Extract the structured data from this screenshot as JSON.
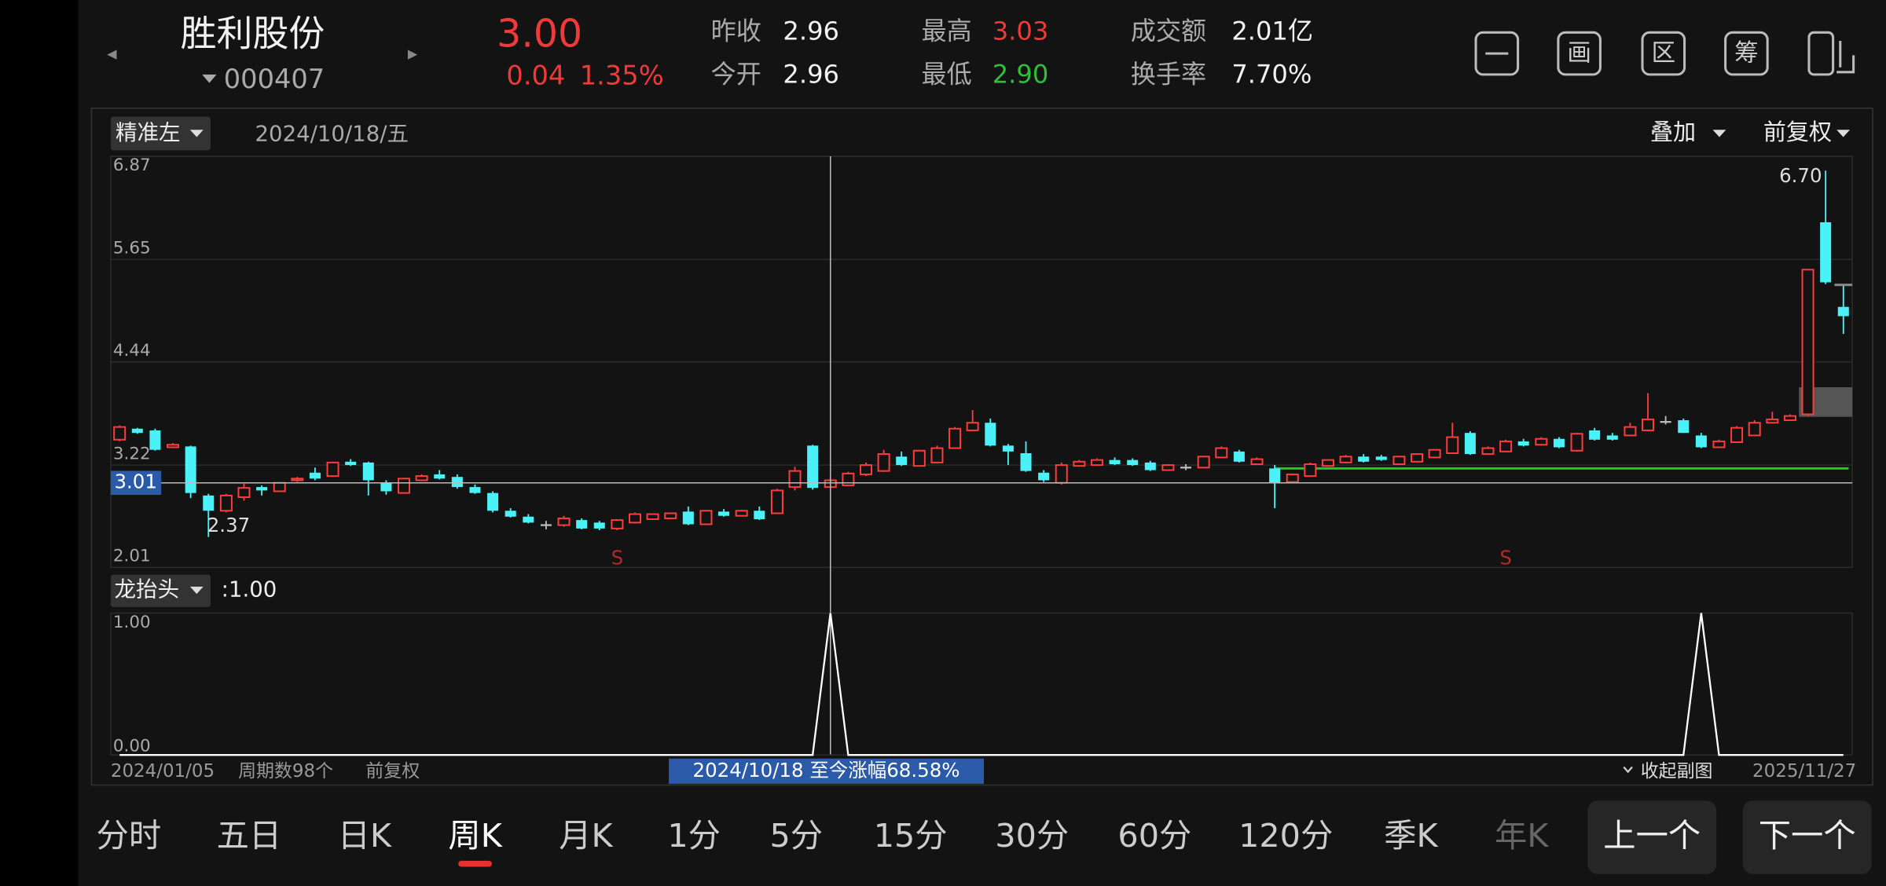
{
  "quote": {
    "name": "胜利股份",
    "code": "000407",
    "price": "3.00",
    "change": "0.04",
    "change_pct": "1.35%",
    "stats": [
      {
        "label": "昨收",
        "value": "2.96"
      },
      {
        "label": "今开",
        "value": "2.96"
      },
      {
        "label": "最高",
        "value": "3.03",
        "color": "#f03a3a"
      },
      {
        "label": "最低",
        "value": "2.90",
        "color": "#2fbf3a"
      },
      {
        "label": "成交额",
        "value": "2.01亿"
      },
      {
        "label": "换手率",
        "value": "7.70%"
      }
    ]
  },
  "tools": [
    "画",
    "区",
    "筹"
  ],
  "toolbar": {
    "mode": "精准左",
    "date": "2024/10/18/五",
    "overlay": "叠加",
    "adjust": "前复权"
  },
  "chart_data": [
    {
      "type": "candlestick",
      "ylim": [
        2.01,
        6.87
      ],
      "yticks": [
        6.87,
        5.65,
        4.44,
        3.22,
        2.01
      ],
      "grid": true,
      "up_color": "#ff3b3b",
      "down_color": "#4af2f7",
      "flat_color": "#bbbbbb",
      "candles": [
        [
          3.52,
          3.69,
          3.5,
          3.67
        ],
        [
          3.65,
          3.66,
          3.59,
          3.6
        ],
        [
          3.63,
          3.65,
          3.39,
          3.4
        ],
        [
          3.43,
          3.48,
          3.42,
          3.46
        ],
        [
          3.44,
          3.45,
          2.83,
          2.89
        ],
        [
          2.86,
          2.88,
          2.37,
          2.68
        ],
        [
          2.68,
          2.88,
          2.66,
          2.86
        ],
        [
          2.84,
          3.0,
          2.8,
          2.95
        ],
        [
          2.96,
          2.98,
          2.86,
          2.92
        ],
        [
          2.91,
          3.02,
          2.9,
          3.01
        ],
        [
          3.04,
          3.08,
          3.02,
          3.06
        ],
        [
          3.13,
          3.19,
          3.04,
          3.06
        ],
        [
          3.09,
          3.26,
          3.08,
          3.25
        ],
        [
          3.26,
          3.29,
          3.21,
          3.22
        ],
        [
          3.25,
          3.26,
          2.86,
          3.04
        ],
        [
          3.01,
          3.04,
          2.87,
          2.91
        ],
        [
          2.89,
          3.07,
          2.88,
          3.06
        ],
        [
          3.04,
          3.11,
          3.03,
          3.09
        ],
        [
          3.11,
          3.16,
          3.05,
          3.06
        ],
        [
          3.08,
          3.11,
          2.94,
          2.96
        ],
        [
          2.96,
          2.99,
          2.88,
          2.89
        ],
        [
          2.89,
          2.91,
          2.66,
          2.68
        ],
        [
          2.68,
          2.71,
          2.6,
          2.61
        ],
        [
          2.61,
          2.64,
          2.53,
          2.54
        ],
        [
          2.51,
          2.56,
          2.46,
          2.51
        ],
        [
          2.51,
          2.62,
          2.49,
          2.59
        ],
        [
          2.57,
          2.59,
          2.46,
          2.47
        ],
        [
          2.54,
          2.56,
          2.45,
          2.47
        ],
        [
          2.47,
          2.58,
          2.45,
          2.57
        ],
        [
          2.54,
          2.66,
          2.53,
          2.64
        ],
        [
          2.58,
          2.65,
          2.57,
          2.64
        ],
        [
          2.59,
          2.66,
          2.58,
          2.65
        ],
        [
          2.67,
          2.73,
          2.51,
          2.52
        ],
        [
          2.52,
          2.69,
          2.51,
          2.68
        ],
        [
          2.67,
          2.7,
          2.61,
          2.62
        ],
        [
          2.62,
          2.69,
          2.61,
          2.68
        ],
        [
          2.68,
          2.73,
          2.57,
          2.58
        ],
        [
          2.65,
          2.94,
          2.64,
          2.92
        ],
        [
          2.96,
          3.2,
          2.92,
          3.15
        ],
        [
          3.45,
          3.46,
          2.93,
          2.95
        ],
        [
          2.96,
          3.06,
          2.95,
          3.04
        ],
        [
          2.98,
          3.14,
          2.97,
          3.12
        ],
        [
          3.11,
          3.25,
          3.09,
          3.22
        ],
        [
          3.15,
          3.4,
          3.14,
          3.35
        ],
        [
          3.32,
          3.38,
          3.21,
          3.22
        ],
        [
          3.21,
          3.4,
          3.2,
          3.39
        ],
        [
          3.25,
          3.45,
          3.24,
          3.42
        ],
        [
          3.42,
          3.67,
          3.41,
          3.65
        ],
        [
          3.63,
          3.87,
          3.62,
          3.72
        ],
        [
          3.72,
          3.77,
          3.44,
          3.45
        ],
        [
          3.45,
          3.47,
          3.22,
          3.38
        ],
        [
          3.36,
          3.5,
          3.14,
          3.15
        ],
        [
          3.13,
          3.16,
          3.02,
          3.04
        ],
        [
          3.01,
          3.25,
          2.99,
          3.22
        ],
        [
          3.21,
          3.28,
          3.2,
          3.26
        ],
        [
          3.22,
          3.3,
          3.21,
          3.28
        ],
        [
          3.28,
          3.31,
          3.22,
          3.23
        ],
        [
          3.28,
          3.3,
          3.21,
          3.22
        ],
        [
          3.25,
          3.27,
          3.15,
          3.16
        ],
        [
          3.16,
          3.23,
          3.15,
          3.22
        ],
        [
          3.19,
          3.23,
          3.16,
          3.19
        ],
        [
          3.19,
          3.33,
          3.18,
          3.32
        ],
        [
          3.31,
          3.44,
          3.3,
          3.42
        ],
        [
          3.38,
          3.4,
          3.25,
          3.26
        ],
        [
          3.23,
          3.31,
          3.22,
          3.29
        ],
        [
          3.18,
          3.22,
          2.71,
          3.01
        ],
        [
          3.02,
          3.12,
          3.01,
          3.11
        ],
        [
          3.09,
          3.25,
          3.08,
          3.23
        ],
        [
          3.21,
          3.29,
          3.2,
          3.28
        ],
        [
          3.25,
          3.34,
          3.24,
          3.32
        ],
        [
          3.32,
          3.35,
          3.25,
          3.26
        ],
        [
          3.32,
          3.34,
          3.27,
          3.28
        ],
        [
          3.23,
          3.33,
          3.22,
          3.32
        ],
        [
          3.26,
          3.36,
          3.25,
          3.35
        ],
        [
          3.31,
          3.41,
          3.3,
          3.4
        ],
        [
          3.36,
          3.72,
          3.35,
          3.55
        ],
        [
          3.6,
          3.62,
          3.34,
          3.35
        ],
        [
          3.35,
          3.44,
          3.34,
          3.42
        ],
        [
          3.38,
          3.52,
          3.37,
          3.5
        ],
        [
          3.5,
          3.53,
          3.44,
          3.45
        ],
        [
          3.46,
          3.55,
          3.45,
          3.53
        ],
        [
          3.53,
          3.55,
          3.42,
          3.43
        ],
        [
          3.39,
          3.6,
          3.38,
          3.59
        ],
        [
          3.63,
          3.66,
          3.51,
          3.52
        ],
        [
          3.57,
          3.6,
          3.51,
          3.52
        ],
        [
          3.57,
          3.72,
          3.56,
          3.67
        ],
        [
          3.63,
          4.07,
          3.62,
          3.76
        ],
        [
          3.73,
          3.8,
          3.7,
          3.73
        ],
        [
          3.75,
          3.77,
          3.6,
          3.6
        ],
        [
          3.57,
          3.6,
          3.42,
          3.43
        ],
        [
          3.43,
          3.52,
          3.42,
          3.5
        ],
        [
          3.49,
          3.68,
          3.48,
          3.66
        ],
        [
          3.57,
          3.75,
          3.56,
          3.72
        ],
        [
          3.72,
          3.85,
          3.71,
          3.76
        ],
        [
          3.75,
          3.82,
          3.74,
          3.8
        ],
        [
          3.82,
          5.53,
          3.8,
          5.53
        ],
        [
          6.09,
          6.7,
          5.36,
          5.38
        ],
        [
          5.09,
          5.34,
          4.77,
          4.98
        ]
      ],
      "overlays": {
        "support": {
          "value": 3.18,
          "start": 65,
          "color": "#22c822"
        },
        "zone": {
          "low": 3.79,
          "high": 4.14,
          "start": 95
        },
        "level": {
          "value": 5.35,
          "start": 97
        }
      },
      "signals": [
        {
          "index": 28,
          "label": "S"
        },
        {
          "index": 78,
          "label": "S"
        }
      ],
      "low_mark": {
        "index": 5,
        "value": 2.37
      },
      "high_mark": {
        "index": 96,
        "value": 6.7,
        "label": "6.70"
      },
      "crosshair": {
        "index": 40,
        "price": 3.01
      }
    },
    {
      "type": "line",
      "name": "龙抬头",
      "readout": ":1.00",
      "color": "#ffffff",
      "ylim": [
        0,
        1
      ],
      "yticks": [
        {
          "value": 1,
          "label": "1.00"
        },
        {
          "value": 0,
          "label": "0.00"
        }
      ],
      "values": [
        0,
        0,
        0,
        0,
        0,
        0,
        0,
        0,
        0,
        0,
        0,
        0,
        0,
        0,
        0,
        0,
        0,
        0,
        0,
        0,
        0,
        0,
        0,
        0,
        0,
        0,
        0,
        0,
        0,
        0,
        0,
        0,
        0,
        0,
        0,
        0,
        0,
        0,
        0,
        0,
        1,
        0,
        0,
        0,
        0,
        0,
        0,
        0,
        0,
        0,
        0,
        0,
        0,
        0,
        0,
        0,
        0,
        0,
        0,
        0,
        0,
        0,
        0,
        0,
        0,
        0,
        0,
        0,
        0,
        0,
        0,
        0,
        0,
        0,
        0,
        0,
        0,
        0,
        0,
        0,
        0,
        0,
        0,
        0,
        0,
        0,
        0,
        0,
        0,
        1,
        0,
        0,
        0,
        0,
        0,
        0,
        0,
        0
      ]
    }
  ],
  "footer": {
    "start": "2024/01/05",
    "periods": "周期数98个",
    "adjust": "前复权",
    "range_info": "2024/10/18 至今涨幅68.58%",
    "collapse": "收起副图",
    "end": "2025/11/27"
  },
  "tabs": [
    "分时",
    "五日",
    "日K",
    "周K",
    "月K",
    "1分",
    "5分",
    "15分",
    "30分",
    "60分",
    "120分",
    "季K",
    "年K"
  ],
  "active_tab": 3,
  "buttons": [
    "上一个",
    "下一个"
  ]
}
